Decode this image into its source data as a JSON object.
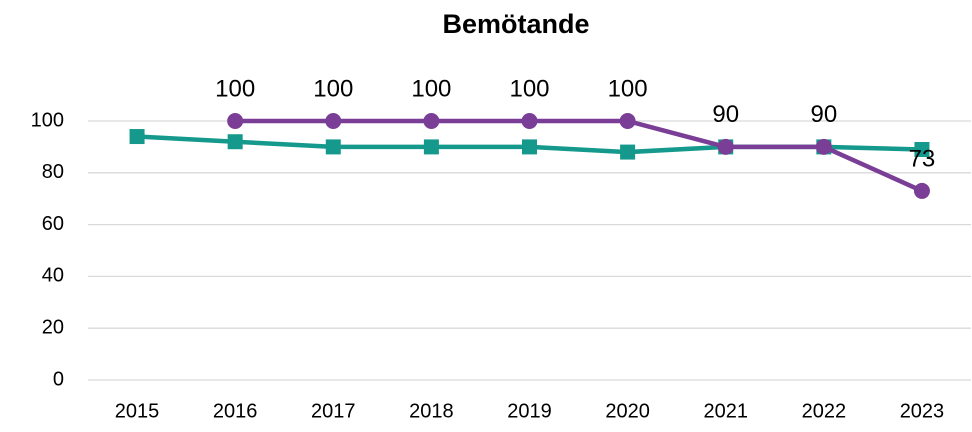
{
  "chart_data": {
    "type": "line",
    "title": "Bemötande",
    "categories": [
      "2015",
      "2016",
      "2017",
      "2018",
      "2019",
      "2020",
      "2021",
      "2022",
      "2023"
    ],
    "series": [
      {
        "color": "#14998c",
        "marker": "square",
        "values": [
          94,
          92,
          90,
          90,
          90,
          88,
          90,
          90,
          89
        ]
      },
      {
        "color": "#7a3e97",
        "marker": "circle",
        "data_labels": true,
        "values": [
          null,
          100,
          100,
          100,
          100,
          100,
          90,
          90,
          73
        ]
      }
    ],
    "ylim": [
      0,
      100
    ],
    "yticks": [
      0,
      20,
      40,
      60,
      80,
      100
    ],
    "grid": true
  }
}
